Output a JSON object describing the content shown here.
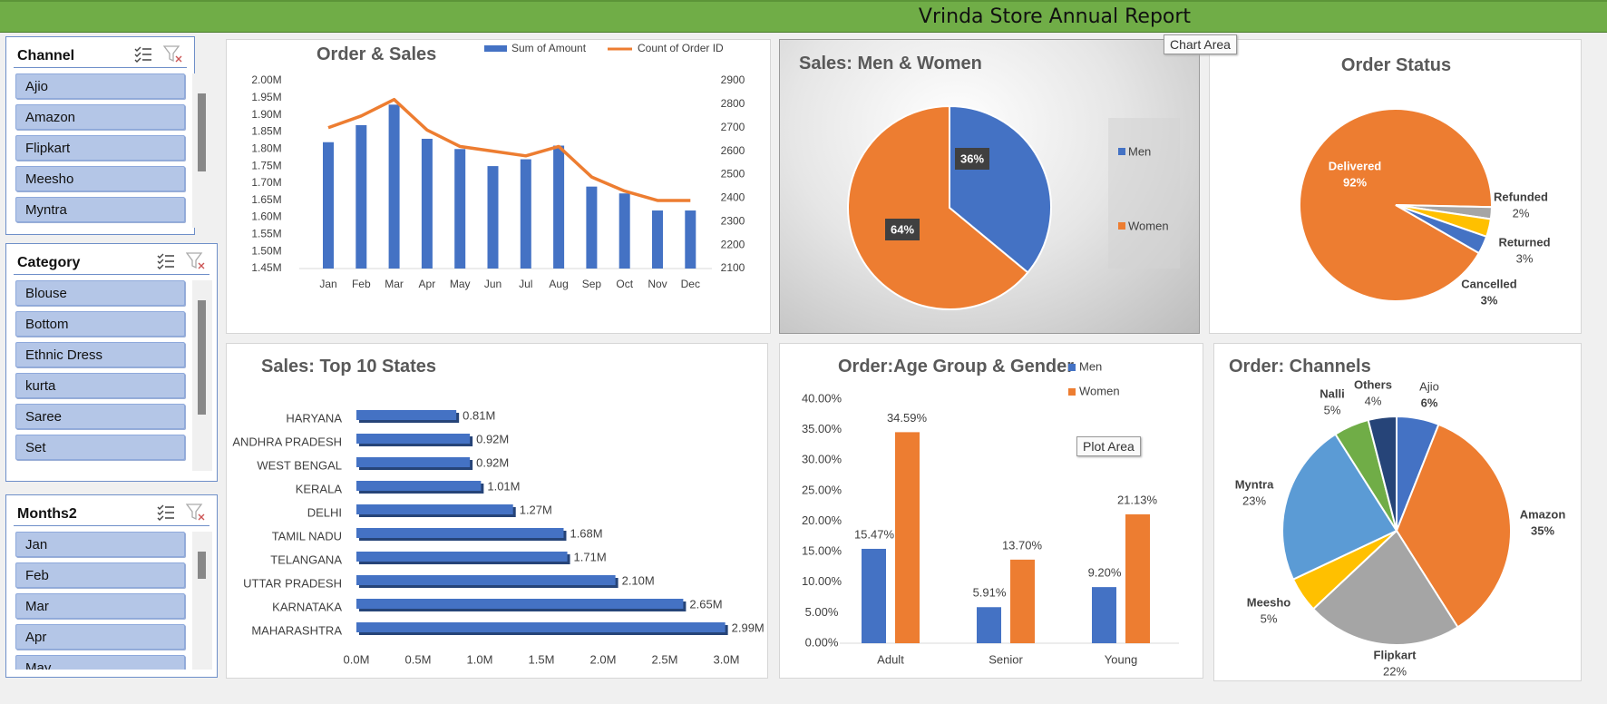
{
  "report": {
    "title": "Vrinda Store Annual Report"
  },
  "slicers": [
    {
      "title": "Channel",
      "items": [
        "Ajio",
        "Amazon",
        "Flipkart",
        "Meesho",
        "Myntra"
      ]
    },
    {
      "title": "Category",
      "items": [
        "Blouse",
        "Bottom",
        "Ethnic Dress",
        "kurta",
        "Saree",
        "Set"
      ]
    },
    {
      "title": "Months2",
      "items": [
        "Jan",
        "Feb",
        "Mar",
        "Apr",
        "May"
      ]
    }
  ],
  "tooltips": {
    "chart_area": "Chart Area",
    "plot_area": "Plot Area"
  },
  "colors": {
    "blue": "#4472c4",
    "orange": "#ed7d31",
    "gray": "#a5a5a5",
    "yellow": "#ffc000",
    "light_blue": "#5b9bd5",
    "green": "#70ad47",
    "dark_blue": "#264478",
    "banner": "#70ad47"
  },
  "chart_data": [
    {
      "id": "order_sales",
      "type": "bar-line",
      "title": "Order & Sales",
      "categories": [
        "Jan",
        "Feb",
        "Mar",
        "Apr",
        "May",
        "Jun",
        "Jul",
        "Aug",
        "Sep",
        "Oct",
        "Nov",
        "Dec"
      ],
      "series": [
        {
          "name": "Sum of Amount",
          "axis": "left",
          "values": [
            1.82,
            1.87,
            1.93,
            1.83,
            1.8,
            1.75,
            1.77,
            1.81,
            1.69,
            1.67,
            1.62,
            1.62
          ]
        },
        {
          "name": "Count of Order ID",
          "axis": "right",
          "values": [
            2700,
            2750,
            2820,
            2690,
            2620,
            2600,
            2580,
            2620,
            2490,
            2430,
            2390,
            2390
          ]
        }
      ],
      "y_left": {
        "min": 1.45,
        "max": 2.0,
        "ticks": [
          "2.00M",
          "1.95M",
          "1.90M",
          "1.85M",
          "1.80M",
          "1.75M",
          "1.70M",
          "1.65M",
          "1.60M",
          "1.55M",
          "1.50M",
          "1.45M"
        ]
      },
      "y_right": {
        "min": 2100,
        "max": 2900,
        "ticks": [
          "2900",
          "2800",
          "2700",
          "2600",
          "2500",
          "2400",
          "2300",
          "2200",
          "2100"
        ]
      },
      "legend": "top"
    },
    {
      "id": "men_women",
      "type": "pie",
      "title": "Sales: Men & Women",
      "labels": [
        "Men",
        "Women"
      ],
      "values": [
        36,
        64
      ],
      "value_labels": [
        "36%",
        "64%"
      ],
      "legend": "right"
    },
    {
      "id": "order_status",
      "type": "pie",
      "title": "Order Status",
      "labels": [
        "Delivered",
        "Refunded",
        "Returned",
        "Cancelled"
      ],
      "values": [
        92,
        2,
        3,
        3
      ],
      "value_labels": [
        "92%",
        "2%",
        "3%",
        "3%"
      ]
    },
    {
      "id": "top_states",
      "type": "bar",
      "orientation": "horizontal",
      "title": "Sales: Top 10 States",
      "categories": [
        "HARYANA",
        "ANDHRA PRADESH",
        "WEST BENGAL",
        "KERALA",
        "DELHI",
        "TAMIL NADU",
        "TELANGANA",
        "UTTAR PRADESH",
        "KARNATAKA",
        "MAHARASHTRA"
      ],
      "values": [
        0.81,
        0.92,
        0.92,
        1.01,
        1.27,
        1.68,
        1.71,
        2.1,
        2.65,
        2.99
      ],
      "value_labels": [
        "0.81M",
        "0.92M",
        "0.92M",
        "1.01M",
        "1.27M",
        "1.68M",
        "1.71M",
        "2.10M",
        "2.65M",
        "2.99M"
      ],
      "x_range": [
        0,
        3.0
      ],
      "x_ticks": [
        "0.0M",
        "0.5M",
        "1.0M",
        "1.5M",
        "2.0M",
        "2.5M",
        "3.0M"
      ]
    },
    {
      "id": "age_gender",
      "type": "bar",
      "title": "Order:Age Group & Gender",
      "categories": [
        "Adult",
        "Senior",
        "Young"
      ],
      "series": [
        {
          "name": "Men",
          "values": [
            15.47,
            5.91,
            9.2
          ],
          "labels": [
            "15.47%",
            "5.91%",
            "9.20%"
          ]
        },
        {
          "name": "Women",
          "values": [
            34.59,
            13.7,
            21.13
          ],
          "labels": [
            "34.59%",
            "13.70%",
            "21.13%"
          ]
        }
      ],
      "y_range": [
        0,
        40
      ],
      "y_ticks": [
        "40.00%",
        "35.00%",
        "30.00%",
        "25.00%",
        "20.00%",
        "15.00%",
        "10.00%",
        "5.00%",
        "0.00%"
      ],
      "legend": "top-right"
    },
    {
      "id": "channels",
      "type": "pie",
      "title": "Order: Channels",
      "labels": [
        "Ajio",
        "Amazon",
        "Flipkart",
        "Meesho",
        "Myntra",
        "Nalli",
        "Others"
      ],
      "values": [
        6,
        35,
        22,
        5,
        23,
        5,
        4
      ],
      "value_labels": [
        "6%",
        "35%",
        "22%",
        "5%",
        "23%",
        "5%",
        "4%"
      ]
    }
  ]
}
